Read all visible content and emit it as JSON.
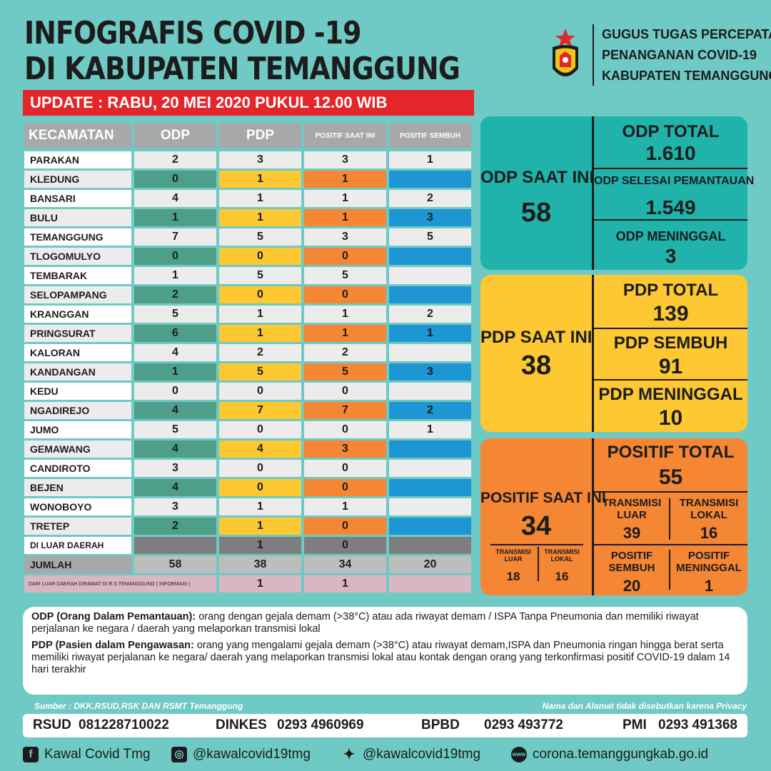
{
  "title": {
    "line1": "INFOGRAFIS  COVID -19",
    "line2": "DI KABUPATEN TEMANGGUNG"
  },
  "update": "UPDATE : RABU, 20 MEI 2020 PUKUL 12.00 WIB",
  "org": {
    "line1": "GUGUS TUGAS PERCEPATAN",
    "line2": "PENANGANAN COVID-19",
    "line3": "KABUPATEN TEMANGGUNG"
  },
  "table": {
    "headers": [
      "KECAMATAN",
      "ODP",
      "PDP",
      "POSITIF SAAT INI",
      "POSITIF SEMBUH"
    ],
    "rows": [
      {
        "name": "PARAKAN",
        "odp": "2",
        "pdp": "3",
        "pos": "3",
        "sem": "1"
      },
      {
        "name": "KLEDUNG",
        "odp": "0",
        "pdp": "1",
        "pos": "1",
        "sem": ""
      },
      {
        "name": "BANSARI",
        "odp": "4",
        "pdp": "1",
        "pos": "1",
        "sem": "2"
      },
      {
        "name": "BULU",
        "odp": "1",
        "pdp": "1",
        "pos": "1",
        "sem": "3"
      },
      {
        "name": "TEMANGGUNG",
        "odp": "7",
        "pdp": "5",
        "pos": "3",
        "sem": "5"
      },
      {
        "name": "TLOGOMULYO",
        "odp": "0",
        "pdp": "0",
        "pos": "0",
        "sem": ""
      },
      {
        "name": "TEMBARAK",
        "odp": "1",
        "pdp": "5",
        "pos": "5",
        "sem": ""
      },
      {
        "name": "SELOPAMPANG",
        "odp": "2",
        "pdp": "0",
        "pos": "0",
        "sem": ""
      },
      {
        "name": "KRANGGAN",
        "odp": "5",
        "pdp": "1",
        "pos": "1",
        "sem": "2"
      },
      {
        "name": "PRINGSURAT",
        "odp": "6",
        "pdp": "1",
        "pos": "1",
        "sem": "1"
      },
      {
        "name": "KALORAN",
        "odp": "4",
        "pdp": "2",
        "pos": "2",
        "sem": ""
      },
      {
        "name": "KANDANGAN",
        "odp": "1",
        "pdp": "5",
        "pos": "5",
        "sem": "3"
      },
      {
        "name": "KEDU",
        "odp": "0",
        "pdp": "0",
        "pos": "0",
        "sem": ""
      },
      {
        "name": "NGADIREJO",
        "odp": "4",
        "pdp": "7",
        "pos": "7",
        "sem": "2"
      },
      {
        "name": "JUMO",
        "odp": "5",
        "pdp": "0",
        "pos": "0",
        "sem": "1"
      },
      {
        "name": "GEMAWANG",
        "odp": "4",
        "pdp": "4",
        "pos": "3",
        "sem": ""
      },
      {
        "name": "CANDIROTO",
        "odp": "3",
        "pdp": "0",
        "pos": "0",
        "sem": ""
      },
      {
        "name": "BEJEN",
        "odp": "4",
        "pdp": "0",
        "pos": "0",
        "sem": ""
      },
      {
        "name": "WONOBOYO",
        "odp": "3",
        "pdp": "1",
        "pos": "1",
        "sem": ""
      },
      {
        "name": "TRETEP",
        "odp": "2",
        "pdp": "1",
        "pos": "0",
        "sem": ""
      }
    ],
    "luar": {
      "name": "DI LUAR DAERAH",
      "odp": "",
      "pdp": "1",
      "pos": "0",
      "sem": ""
    },
    "jumlah": {
      "name": "JUMLAH",
      "odp": "58",
      "pdp": "38",
      "pos": "34",
      "sem": "20"
    },
    "info": {
      "name": "DARI LUAR DAERAH DIRAWAT DI R.S TEMANGGUNG ( INFORMASI )",
      "pdp": "1",
      "pos": "1"
    }
  },
  "odp": {
    "saat_label": "ODP SAAT INI",
    "saat": "58",
    "total_label": "ODP TOTAL",
    "total": "1.610",
    "selesai_label": "ODP SELESAI PEMANTAUAN",
    "selesai": "1.549",
    "meninggal_label": "ODP MENINGGAL",
    "meninggal": "3"
  },
  "pdp": {
    "saat_label": "PDP SAAT INI",
    "saat": "38",
    "total_label": "PDP TOTAL",
    "total": "139",
    "sembuh_label": "PDP SEMBUH",
    "sembuh": "91",
    "meninggal_label": "PDP MENINGGAL",
    "meninggal": "10"
  },
  "positif": {
    "saat_label": "POSITIF SAAT INI",
    "saat": "34",
    "tl_small_label": "TRANSMISI LUAR",
    "tl_small": "18",
    "tk_small_label": "TRANSMISI LOKAL",
    "tk_small": "16",
    "total_label": "POSITIF TOTAL",
    "total": "55",
    "luar_label": "TRANSMISI LUAR",
    "luar": "39",
    "lokal_label": "TRANSMISI LOKAL",
    "lokal": "16",
    "sembuh_label": "POSITIF SEMBUH",
    "sembuh": "20",
    "meninggal_label": "POSITIF MENINGGAL",
    "meninggal": "1"
  },
  "defs": {
    "odp_term": "ODP (Orang Dalam Pemantauan):",
    "odp_text": " orang dengan gejala demam (>38°C) atau ada riwayat demam / ISPA Tanpa Pneumonia dan memiliki riwayat perjalanan ke negara / daerah yang melaporkan transmisi lokal",
    "pdp_term": "PDP (Pasien dalam Pengawasan:",
    "pdp_text": " orang yang mengalami gejala demam (>38°C) atau riwayat demam,ISPA dan Pneumonia ringan hingga berat serta memiliki riwayat perjalanan ke negara/ daerah yang melaporkan transmisi lokal atau kontak dengan orang yang terkonfirmasi positif COVID-19 dalam 14 hari terakhir"
  },
  "source": "Sumber : DKK,RSUD,RSK DAN RSMT Temanggung",
  "privacy": "Nama dan Alamat tidak disebutkan karena Privacy",
  "contacts": [
    {
      "name": "RSUD",
      "phone": "081228710022"
    },
    {
      "name": "DINKES",
      "phone": "0293 4960969"
    },
    {
      "name": "BPBD",
      "phone": "0293 493772"
    },
    {
      "name": "PMI",
      "phone": "0293 491368"
    }
  ],
  "social": {
    "facebook": "Kawal Covid Tmg",
    "instagram": "@kawalcovid19tmg",
    "twitter": "@kawalcovid19tmg",
    "web": "corona.temanggungkab.go.id"
  },
  "icons": [
    "logo-emblem",
    "facebook-icon",
    "instagram-icon",
    "twitter-icon",
    "web-icon"
  ]
}
